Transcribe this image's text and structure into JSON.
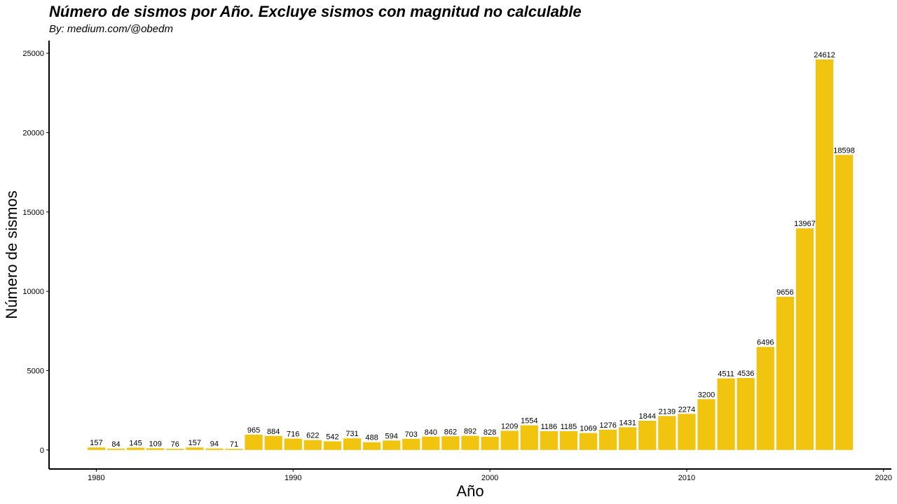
{
  "chart_data": {
    "type": "bar",
    "title": "Número de sismos por Año. Excluye sismos con magnitud no calculable",
    "subtitle": "By: medium.com/@obedm",
    "xlabel": "Año",
    "ylabel": "Número de sismos",
    "x": [
      1980,
      1981,
      1982,
      1983,
      1984,
      1985,
      1986,
      1987,
      1988,
      1989,
      1990,
      1991,
      1992,
      1993,
      1994,
      1995,
      1996,
      1997,
      1998,
      1999,
      2000,
      2001,
      2002,
      2003,
      2004,
      2005,
      2006,
      2007,
      2008,
      2009,
      2010,
      2011,
      2012,
      2013,
      2014,
      2015,
      2016,
      2017,
      2018
    ],
    "values": [
      157,
      84,
      145,
      109,
      76,
      157,
      94,
      71,
      965,
      884,
      716,
      622,
      542,
      731,
      488,
      594,
      703,
      840,
      862,
      892,
      828,
      1209,
      1554,
      1186,
      1185,
      1069,
      1276,
      1431,
      1844,
      2139,
      2274,
      3200,
      4511,
      4536,
      6496,
      9656,
      13967,
      24612,
      18598
    ],
    "xlim": [
      1977.6,
      2020.4
    ],
    "ylim": [
      -1200,
      25800
    ],
    "x_ticks": [
      1980,
      1990,
      2000,
      2010,
      2020
    ],
    "y_ticks": [
      0,
      5000,
      10000,
      15000,
      20000,
      25000
    ],
    "bar_color": "#F1C40F",
    "grid": false,
    "legend": "none"
  }
}
